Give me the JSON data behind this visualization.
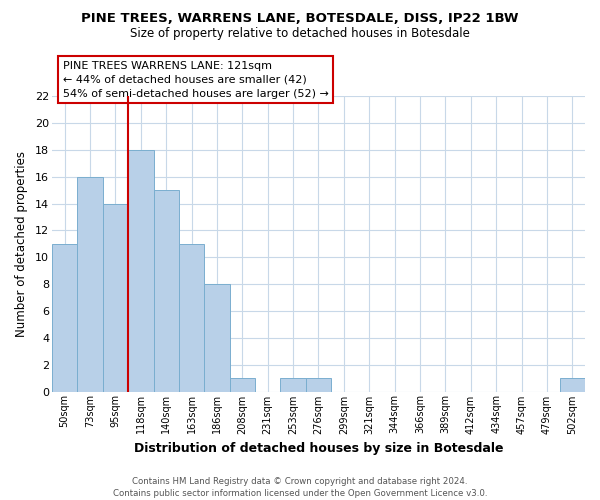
{
  "title": "PINE TREES, WARRENS LANE, BOTESDALE, DISS, IP22 1BW",
  "subtitle": "Size of property relative to detached houses in Botesdale",
  "xlabel": "Distribution of detached houses by size in Botesdale",
  "ylabel": "Number of detached properties",
  "bin_labels": [
    "50sqm",
    "73sqm",
    "95sqm",
    "118sqm",
    "140sqm",
    "163sqm",
    "186sqm",
    "208sqm",
    "231sqm",
    "253sqm",
    "276sqm",
    "299sqm",
    "321sqm",
    "344sqm",
    "366sqm",
    "389sqm",
    "412sqm",
    "434sqm",
    "457sqm",
    "479sqm",
    "502sqm"
  ],
  "bar_heights": [
    11,
    16,
    14,
    18,
    15,
    11,
    8,
    1,
    0,
    1,
    1,
    0,
    0,
    0,
    0,
    0,
    0,
    0,
    0,
    0,
    1
  ],
  "bar_color": "#b8d0e8",
  "bar_edge_color": "#7aaecf",
  "vline_color": "#cc0000",
  "ylim": [
    0,
    22
  ],
  "yticks": [
    0,
    2,
    4,
    6,
    8,
    10,
    12,
    14,
    16,
    18,
    20,
    22
  ],
  "annotation_title": "PINE TREES WARRENS LANE: 121sqm",
  "annotation_line1": "← 44% of detached houses are smaller (42)",
  "annotation_line2": "54% of semi-detached houses are larger (52) →",
  "annotation_box_color": "#ffffff",
  "annotation_box_edge": "#cc0000",
  "footer_line1": "Contains HM Land Registry data © Crown copyright and database right 2024.",
  "footer_line2": "Contains public sector information licensed under the Open Government Licence v3.0.",
  "background_color": "#ffffff",
  "grid_color": "#c8d8e8"
}
